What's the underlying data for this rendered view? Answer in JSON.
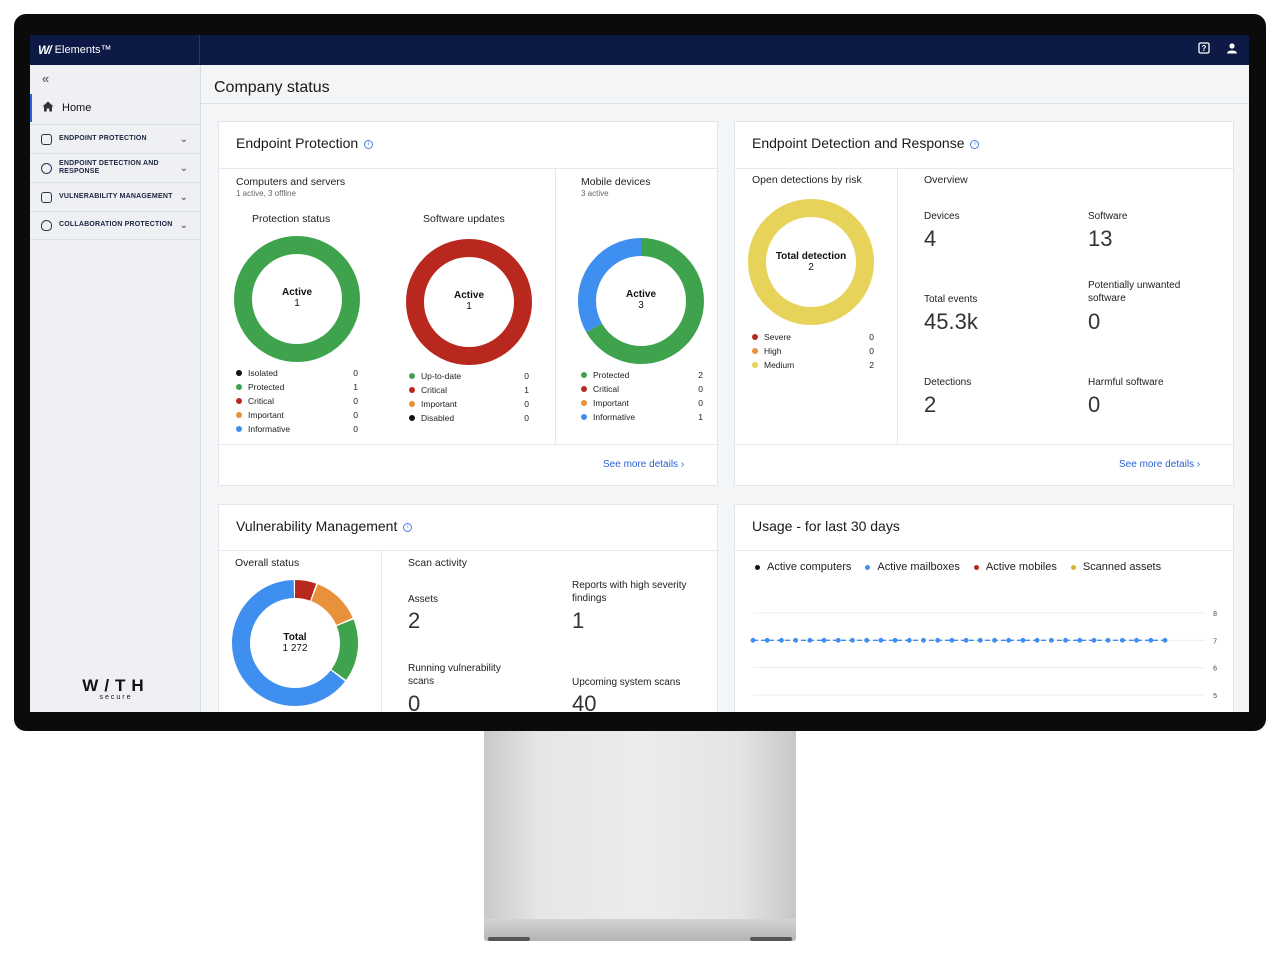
{
  "app": {
    "logo": "W/",
    "name": "Elements™"
  },
  "topbar": {
    "help_icon": "help-icon",
    "user_icon": "user-icon"
  },
  "sidebar": {
    "collapse_icon": "«",
    "home": "Home",
    "items": [
      {
        "label": "ENDPOINT PROTECTION"
      },
      {
        "label": "ENDPOINT DETECTION AND RESPONSE"
      },
      {
        "label": "VULNERABILITY MANAGEMENT"
      },
      {
        "label": "COLLABORATION PROTECTION"
      }
    ],
    "brand_word": "W/TH",
    "brand_sub": "secure"
  },
  "page": {
    "title": "Company status"
  },
  "endpoint_protection": {
    "title": "Endpoint Protection",
    "computers": {
      "title": "Computers and servers",
      "subtitle": "1 active, 3 offline"
    },
    "protection_status": {
      "title": "Protection status",
      "center_label": "Active",
      "center_value": "1",
      "legend": [
        {
          "name": "Isolated",
          "value": "0",
          "color": "#111111"
        },
        {
          "name": "Protected",
          "value": "1",
          "color": "#3fa34d"
        },
        {
          "name": "Critical",
          "value": "0",
          "color": "#b8281e"
        },
        {
          "name": "Important",
          "value": "0",
          "color": "#e8913a"
        },
        {
          "name": "Informative",
          "value": "0",
          "color": "#3f8ff0"
        }
      ]
    },
    "software_updates": {
      "title": "Software updates",
      "center_label": "Active",
      "center_value": "1",
      "legend": [
        {
          "name": "Up-to-date",
          "value": "0",
          "color": "#3fa34d"
        },
        {
          "name": "Critical",
          "value": "1",
          "color": "#b8281e"
        },
        {
          "name": "Important",
          "value": "0",
          "color": "#e8913a"
        },
        {
          "name": "Disabled",
          "value": "0",
          "color": "#111111"
        }
      ]
    },
    "mobile": {
      "title": "Mobile devices",
      "subtitle": "3 active",
      "center_label": "Active",
      "center_value": "3",
      "legend": [
        {
          "name": "Protected",
          "value": "2",
          "color": "#3fa34d"
        },
        {
          "name": "Critical",
          "value": "0",
          "color": "#b8281e"
        },
        {
          "name": "Important",
          "value": "0",
          "color": "#e8913a"
        },
        {
          "name": "Informative",
          "value": "1",
          "color": "#3f8ff0"
        }
      ]
    },
    "details": "See more details"
  },
  "edr": {
    "title": "Endpoint Detection and Response",
    "risk": {
      "title": "Open detections by risk",
      "center_label": "Total detection",
      "center_value": "2",
      "legend": [
        {
          "name": "Severe",
          "value": "0",
          "color": "#b8281e"
        },
        {
          "name": "High",
          "value": "0",
          "color": "#e8913a"
        },
        {
          "name": "Medium",
          "value": "2",
          "color": "#e8d35a"
        }
      ]
    },
    "overview": {
      "title": "Overview",
      "devices_label": "Devices",
      "devices_value": "4",
      "software_label": "Software",
      "software_value": "13",
      "events_label": "Total events",
      "events_value": "45.3k",
      "pup_label": "Potentially unwanted software",
      "pup_value": "0",
      "detections_label": "Detections",
      "detections_value": "2",
      "harmful_label": "Harmful software",
      "harmful_value": "0"
    },
    "details": "See more details"
  },
  "vuln": {
    "title": "Vulnerability Management",
    "overall": {
      "title": "Overall status",
      "center_label": "Total",
      "center_value": "1 272"
    },
    "scan": {
      "title": "Scan activity",
      "assets_label": "Assets",
      "assets_value": "2",
      "reports_label": "Reports with high severity findings",
      "reports_value": "1",
      "running_label": "Running vulnerability scans",
      "running_value": "0",
      "upcoming_label": "Upcoming system scans",
      "upcoming_value": "40"
    }
  },
  "usage": {
    "title": "Usage - for last 30 days",
    "legend": [
      {
        "name": "Active computers",
        "color": "#111111"
      },
      {
        "name": "Active mailboxes",
        "color": "#3f8ff0"
      },
      {
        "name": "Active mobiles",
        "color": "#b8281e"
      },
      {
        "name": "Scanned assets",
        "color": "#d9b52e"
      }
    ]
  },
  "chart_data": [
    {
      "type": "pie",
      "title": "Protection status",
      "labels": [
        "Protected"
      ],
      "values": [
        1
      ]
    },
    {
      "type": "pie",
      "title": "Software updates",
      "labels": [
        "Critical"
      ],
      "values": [
        1
      ]
    },
    {
      "type": "pie",
      "title": "Mobile devices",
      "labels": [
        "Protected",
        "Informative"
      ],
      "values": [
        2,
        1
      ]
    },
    {
      "type": "pie",
      "title": "Open detections by risk",
      "labels": [
        "Medium"
      ],
      "values": [
        2
      ]
    },
    {
      "type": "pie",
      "title": "Overall status",
      "values": [
        75,
        165,
        210,
        822
      ],
      "colors": [
        "#b8281e",
        "#e8913a",
        "#3fa34d",
        "#3f8ff0"
      ]
    },
    {
      "type": "line",
      "title": "Usage - for last 30 days",
      "y_ticks": [
        "8",
        "7",
        "6",
        "5"
      ],
      "ylim": [
        4,
        8
      ],
      "series": [
        {
          "name": "Active mailboxes",
          "values": [
            7,
            7,
            7,
            7,
            7,
            7,
            7,
            7,
            7,
            7,
            7,
            7,
            7,
            7,
            7,
            7,
            7,
            7,
            7,
            7,
            7,
            7,
            7,
            7,
            7,
            7,
            7,
            7,
            7,
            7
          ]
        }
      ]
    }
  ]
}
